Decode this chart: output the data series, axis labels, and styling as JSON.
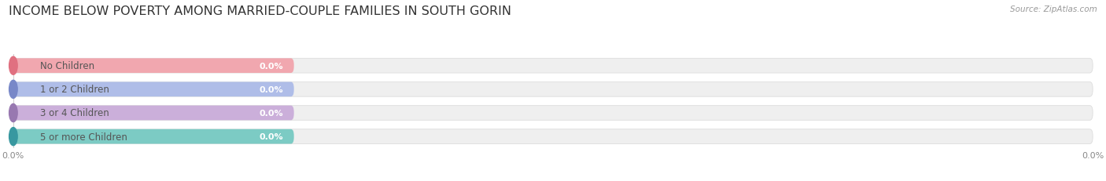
{
  "title": "INCOME BELOW POVERTY AMONG MARRIED-COUPLE FAMILIES IN SOUTH GORIN",
  "source": "Source: ZipAtlas.com",
  "categories": [
    "No Children",
    "1 or 2 Children",
    "3 or 4 Children",
    "5 or more Children"
  ],
  "values": [
    0.0,
    0.0,
    0.0,
    0.0
  ],
  "bar_colors": [
    "#f2a0a8",
    "#a8b8e8",
    "#c8a8d8",
    "#70c8c0"
  ],
  "circle_colors": [
    "#e07080",
    "#7888c8",
    "#9878b0",
    "#3898a0"
  ],
  "background_color": "#ffffff",
  "bar_bg_color": "#efefef",
  "bar_edge_color": "#dddddd",
  "title_color": "#333333",
  "source_color": "#999999",
  "label_color": "#555555",
  "value_color": "#ffffff",
  "tick_color": "#888888",
  "title_fontsize": 11.5,
  "label_fontsize": 8.5,
  "value_fontsize": 8.0,
  "tick_fontsize": 8.0,
  "source_fontsize": 7.5,
  "figsize": [
    14.06,
    2.32
  ],
  "dpi": 100
}
